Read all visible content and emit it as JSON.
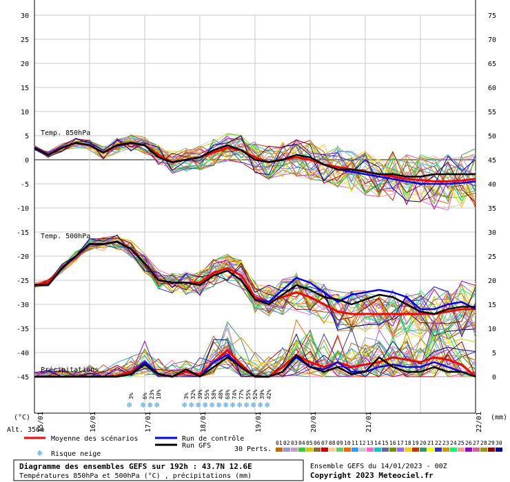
{
  "chart_data": {
    "type": "line",
    "left_axis_unit": "(°C)",
    "right_axis_unit": "(mm)",
    "left_ticks": [
      30,
      25,
      20,
      15,
      10,
      5,
      0,
      -5,
      -10,
      -15,
      -20,
      -25,
      -30,
      -35,
      -40,
      -45
    ],
    "right_ticks": [
      75,
      70,
      65,
      60,
      55,
      50,
      45,
      40,
      35,
      30,
      25,
      20,
      15,
      10,
      5,
      0
    ],
    "left_ylim": [
      -45,
      30
    ],
    "right_ylim": [
      0,
      75
    ],
    "x_dates": [
      "15/01",
      "16/01",
      "17/01",
      "18/01",
      "19/01",
      "20/01",
      "21/01",
      "22/01"
    ],
    "x_first_date": "15/01",
    "section_labels": {
      "t850": "Temp. 850hPa",
      "t500": "Temp. 500hPa",
      "precip": "Précipitations"
    },
    "x_hours": [
      0,
      6,
      12,
      18,
      24,
      30,
      36,
      42,
      48,
      54,
      60,
      66,
      72,
      78,
      84,
      90,
      96,
      102,
      108,
      114,
      120,
      126,
      132,
      138,
      144,
      150,
      156,
      162,
      168,
      174,
      180,
      186,
      192
    ],
    "series": [
      {
        "name": "Moyenne des scénarios",
        "group": "t850",
        "color": "#ff0000",
        "values": [
          2.5,
          1,
          2.5,
          3.5,
          3,
          1.5,
          3,
          3.5,
          3,
          1,
          -0.5,
          0,
          0.5,
          1.5,
          2.5,
          2,
          0.5,
          -0.5,
          0,
          0.5,
          0,
          -1,
          -1.5,
          -2,
          -2.5,
          -3,
          -3.5,
          -4,
          -4.2,
          -4.5,
          -4.5,
          -4.3,
          -4
        ]
      },
      {
        "name": "Run de contrôle",
        "group": "t850",
        "color": "#0000ff",
        "values": [
          2.5,
          1,
          2.5,
          3.5,
          3,
          1.5,
          3,
          3.5,
          3,
          0.5,
          -0.5,
          0,
          0.5,
          2,
          3,
          2,
          0,
          -0.5,
          0,
          1,
          0.5,
          -1,
          -2,
          -2.5,
          -3,
          -3.5,
          -4,
          -4.5,
          -5,
          -5,
          -5,
          -4.8,
          -4.5
        ]
      },
      {
        "name": "Run GFS",
        "group": "t850",
        "color": "#000000",
        "values": [
          2.5,
          1,
          2.5,
          3.5,
          3,
          1.5,
          3,
          3.5,
          3,
          0.5,
          -0.5,
          0,
          0.5,
          2,
          3,
          2,
          0,
          -0.5,
          0,
          1,
          0.5,
          -1,
          -2,
          -2,
          -2.5,
          -3,
          -3,
          -3.5,
          -3.5,
          -3,
          -3,
          -3,
          -3
        ]
      },
      {
        "name": "Moyenne des scénarios",
        "group": "t500",
        "color": "#ff0000",
        "values": [
          -26,
          -25.5,
          -22.5,
          -20,
          -17.5,
          -17.5,
          -17,
          -18.5,
          -21.5,
          -25,
          -25.5,
          -25.5,
          -25.5,
          -23.5,
          -22.5,
          -24,
          -28.5,
          -29.5,
          -28.5,
          -27.5,
          -28.5,
          -30,
          -31.5,
          -32,
          -32,
          -32,
          -32,
          -32,
          -32,
          -32,
          -31.5,
          -31,
          -31
        ]
      },
      {
        "name": "Run de contrôle",
        "group": "t500",
        "color": "#0000ff",
        "values": [
          -26,
          -26,
          -22.5,
          -20,
          -17.5,
          -17.5,
          -17,
          -18.5,
          -21.5,
          -25,
          -25.5,
          -25.5,
          -26,
          -24,
          -23,
          -25,
          -29,
          -29.5,
          -27,
          -24.5,
          -25.5,
          -27.5,
          -29.5,
          -28,
          -27.5,
          -27,
          -27.5,
          -28.5,
          -31,
          -31,
          -30,
          -29.5,
          -31
        ]
      },
      {
        "name": "Run GFS",
        "group": "t500",
        "color": "#000000",
        "values": [
          -26,
          -26,
          -22.5,
          -20,
          -17.5,
          -17.5,
          -17,
          -18.5,
          -21.5,
          -25,
          -25.5,
          -25.5,
          -26,
          -24,
          -23,
          -25,
          -29,
          -30,
          -28,
          -26,
          -27,
          -28.5,
          -29,
          -30,
          -29,
          -28,
          -28.5,
          -30,
          -31.5,
          -32,
          -31,
          -30.5,
          -30.5
        ]
      },
      {
        "name": "Moyenne des scénarios",
        "group": "precip",
        "color": "#ff0000",
        "values": [
          0,
          0,
          0,
          0,
          0,
          0,
          0.2,
          1,
          3,
          0.5,
          0,
          1,
          0.5,
          3,
          5.5,
          2.5,
          0,
          0,
          2,
          4.5,
          3,
          2,
          3,
          2,
          2.5,
          3,
          4,
          3.5,
          3,
          4,
          3.5,
          2.5,
          0
        ]
      },
      {
        "name": "Run de contrôle",
        "group": "precip",
        "color": "#0000ff",
        "values": [
          0,
          0,
          0,
          0,
          0,
          0,
          0,
          0.5,
          3,
          0.5,
          0,
          1.5,
          0,
          3,
          4.5,
          2,
          0,
          0,
          1,
          4,
          2,
          1.5,
          3,
          1,
          1,
          2,
          2.5,
          2,
          2,
          3,
          2,
          1,
          0
        ]
      },
      {
        "name": "Run GFS",
        "group": "precip",
        "color": "#000000",
        "values": [
          0,
          0,
          0,
          0,
          0,
          0,
          0,
          0.5,
          2.5,
          0.5,
          0,
          1.5,
          0,
          2,
          4,
          2,
          0,
          0,
          1,
          4.5,
          2,
          1,
          2,
          0.5,
          1,
          4,
          2,
          1,
          1,
          2,
          1,
          1,
          0
        ]
      }
    ],
    "snow_risk": [
      {
        "hour": 42,
        "label": "3%"
      },
      {
        "hour": 48,
        "label": "6%"
      },
      {
        "hour": 51,
        "label": "23%"
      },
      {
        "hour": 54,
        "label": "10%"
      },
      {
        "hour": 66,
        "label": "3%"
      },
      {
        "hour": 69,
        "label": "32%"
      },
      {
        "hour": 72,
        "label": "39%"
      },
      {
        "hour": 75,
        "label": "55%"
      },
      {
        "hour": 78,
        "label": "58%"
      },
      {
        "hour": 81,
        "label": "48%"
      },
      {
        "hour": 84,
        "label": "68%"
      },
      {
        "hour": 87,
        "label": "74%"
      },
      {
        "hour": 90,
        "label": "77%"
      },
      {
        "hour": 93,
        "label": "55%"
      },
      {
        "hour": 96,
        "label": "52%"
      },
      {
        "hour": 99,
        "label": "39%"
      },
      {
        "hour": 102,
        "label": "42%"
      }
    ]
  },
  "legend": {
    "altitude": "Alt. 356m",
    "mean_label": "Moyenne des scénarios",
    "control_label": "Run de contrôle",
    "gfs_label": "Run GFS",
    "snow_label": "Risque neige",
    "perts_label": "30 Perts.",
    "pert_numbers": [
      "01",
      "02",
      "03",
      "04",
      "05",
      "06",
      "07",
      "08",
      "09",
      "10",
      "11",
      "12",
      "13",
      "14",
      "15",
      "16",
      "17",
      "18",
      "19",
      "20",
      "21",
      "22",
      "23",
      "24",
      "25",
      "26",
      "27",
      "28",
      "29",
      "30"
    ],
    "pert_colors": [
      "#cc6600",
      "#9999cc",
      "#cc99cc",
      "#33cc33",
      "#cccc00",
      "#996633",
      "#cc0000",
      "#ffcc99",
      "#66cc66",
      "#ff6600",
      "#3399ff",
      "#cccccc",
      "#ff66cc",
      "#00cccc",
      "#666699",
      "#669900",
      "#9966ff",
      "#ffcc00",
      "#cc3300",
      "#339966",
      "#ffff00",
      "#3333cc",
      "#cc9900",
      "#00ff66",
      "#ff9999",
      "#9900cc",
      "#cc6699",
      "#999900",
      "#990000",
      "#000099"
    ]
  },
  "footer": {
    "title": "Diagramme des ensembles GEFS sur 192h : 43.7N 12.6E",
    "subtitle": "Températures 850hPa et 500hPa (°C) , précipitations (mm)",
    "ensemble": "Ensemble GEFS du 14/01/2023 - 00Z",
    "copyright": "Copyright 2023 Meteociel.fr"
  }
}
